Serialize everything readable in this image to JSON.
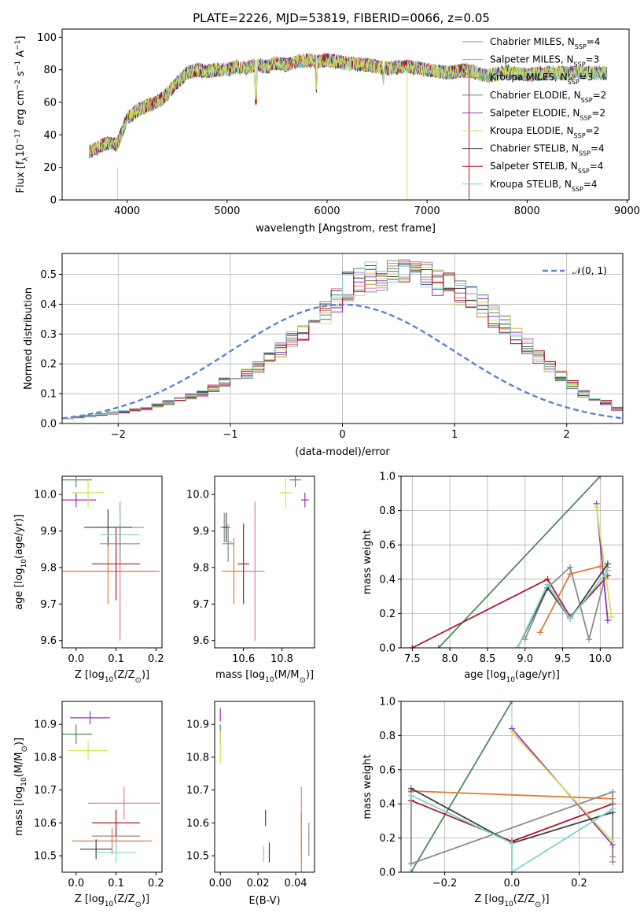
{
  "figure": {
    "title": "PLATE=2226, MJD=53819, FIBERID=0066, z=0.05"
  },
  "models": [
    {
      "label": "Chabrier MILES, N",
      "sub": "SSP",
      "tail": "=4",
      "color": "#8c8c8c"
    },
    {
      "label": "Salpeter MILES, N",
      "sub": "SSP",
      "tail": "=3",
      "color": "#e377c2"
    },
    {
      "label": "Kroupa MILES, N",
      "sub": "SSP",
      "tail": "=3",
      "color": "#e07b39"
    },
    {
      "label": "Chabrier ELODIE, N",
      "sub": "SSP",
      "tail": "=2",
      "color": "#4c8c5a"
    },
    {
      "label": "Salpeter ELODIE, N",
      "sub": "SSP",
      "tail": "=2",
      "color": "#9b30b8"
    },
    {
      "label": "Kroupa ELODIE, N",
      "sub": "SSP",
      "tail": "=2",
      "color": "#d4e157"
    },
    {
      "label": "Chabrier STELIB, N",
      "sub": "SSP",
      "tail": "=4",
      "color": "#404040"
    },
    {
      "label": "Salpeter STELIB, N",
      "sub": "SSP",
      "tail": "=4",
      "color": "#b2182b"
    },
    {
      "label": "Kroupa STELIB, N",
      "sub": "SSP",
      "tail": "=4",
      "color": "#7fd3d3"
    }
  ],
  "chart_data": [
    {
      "id": "spectrum",
      "type": "line",
      "xlabel": "wavelength [Angstrom, rest frame]",
      "ylabel_parts": {
        "a": "Flux [f",
        "sub1": "λ",
        "b": "10",
        "sup1": "−17",
        "c": " erg cm",
        "sup2": "−2",
        "d": " s",
        "sup3": "−1",
        "e": " A",
        "sup4": "−1",
        "f": "]"
      },
      "xlim": [
        3350,
        9020
      ],
      "ylim": [
        0,
        105
      ],
      "xticks": [
        "4000",
        "5000",
        "6000",
        "7000",
        "8000",
        "9000"
      ],
      "xtick_values": [
        4000,
        5000,
        6000,
        7000,
        8000,
        9000
      ],
      "yticks": [
        "0",
        "20",
        "40",
        "60",
        "80",
        "100"
      ],
      "ytick_values": [
        0,
        20,
        40,
        60,
        80,
        100
      ],
      "grid": false,
      "legend": "right",
      "envelope_wavelength": [
        3620,
        3700,
        3800,
        3900,
        4000,
        4100,
        4200,
        4300,
        4400,
        4500,
        4600,
        4700,
        4800,
        4900,
        5000,
        5100,
        5200,
        5300,
        5400,
        5500,
        5600,
        5700,
        5800,
        5900,
        6000,
        6200,
        6400,
        6600,
        6800,
        7000,
        7200,
        7400,
        7600,
        7800,
        8000,
        8200,
        8400,
        8600,
        8800
      ],
      "envelope_flux": [
        30,
        32,
        35,
        34,
        50,
        55,
        58,
        60,
        65,
        72,
        78,
        80,
        79,
        80,
        80,
        82,
        81,
        83,
        82,
        84,
        83,
        85,
        86,
        85,
        86,
        84,
        83,
        81,
        82,
        80,
        78,
        80,
        76,
        79,
        77,
        78,
        78,
        78,
        78
      ]
    },
    {
      "id": "residuals",
      "type": "bar",
      "xlabel": "(data-model)/error",
      "ylabel": "Normed distribution",
      "xlim": [
        -2.5,
        2.5
      ],
      "ylim": [
        0,
        0.57
      ],
      "xticks": [
        "−2",
        "−1",
        "0",
        "1",
        "2"
      ],
      "xtick_values": [
        -2,
        -1,
        0,
        1,
        2
      ],
      "yticks": [
        "0.0",
        "0.1",
        "0.2",
        "0.3",
        "0.4",
        "0.5"
      ],
      "ytick_values": [
        0,
        0.1,
        0.2,
        0.3,
        0.4,
        0.5
      ],
      "grid": true,
      "legend": "top-right",
      "reference_label": "𝒩(0, 1)",
      "reference_color": "#5b84d6",
      "bin_width": 0.1,
      "bin_start": -2.5,
      "mean_histogram": [
        0.018,
        0.02,
        0.025,
        0.03,
        0.035,
        0.04,
        0.045,
        0.05,
        0.06,
        0.07,
        0.08,
        0.09,
        0.1,
        0.12,
        0.14,
        0.15,
        0.17,
        0.19,
        0.22,
        0.25,
        0.28,
        0.31,
        0.34,
        0.37,
        0.42,
        0.46,
        0.47,
        0.49,
        0.5,
        0.51,
        0.5,
        0.49,
        0.49,
        0.48,
        0.46,
        0.44,
        0.42,
        0.39,
        0.36,
        0.33,
        0.29,
        0.26,
        0.22,
        0.19,
        0.16,
        0.13,
        0.1,
        0.08,
        0.07,
        0.05,
        0.04,
        0.035,
        0.03,
        0.025,
        0.02,
        0.018,
        0.015,
        0.013,
        0.012,
        0.01
      ]
    },
    {
      "id": "age-vs-z",
      "type": "scatter",
      "xlabel": "Z [log10(Z/Z⊙)]",
      "xlabel_parts": {
        "a": "Z [log",
        "sub": "10",
        "b": "(Z/Z",
        "sun": "⊙",
        "c": ")]"
      },
      "ylabel_parts": {
        "a": "age  [log",
        "sub": "10",
        "b": "(age/yr)]"
      },
      "xlim": [
        -0.035,
        0.215
      ],
      "ylim": [
        9.58,
        10.05
      ],
      "xticks": [
        "0.0",
        "0.1",
        "0.2"
      ],
      "xtick_values": [
        0,
        0.1,
        0.2
      ],
      "yticks": [
        "9.6",
        "9.7",
        "9.8",
        "9.9",
        "10.0"
      ],
      "ytick_values": [
        9.6,
        9.7,
        9.8,
        9.9,
        10.0
      ],
      "grid": false,
      "points": [
        {
          "model": 0,
          "x": 0.11,
          "y": 9.91,
          "xerr": 0.06,
          "yerr": 0.04
        },
        {
          "model": 1,
          "x": 0.11,
          "y": 9.79,
          "xerr": 0.1,
          "yerr": 0.19
        },
        {
          "model": 2,
          "x": 0.08,
          "y": 9.79,
          "xerr": 0.12,
          "yerr": 0.09
        },
        {
          "model": 3,
          "x": 0.0,
          "y": 10.04,
          "xerr": 0.04,
          "yerr": 0.02
        },
        {
          "model": 4,
          "x": 0.0,
          "y": 9.985,
          "xerr": 0.05,
          "yerr": 0.02
        },
        {
          "model": 5,
          "x": 0.03,
          "y": 10.005,
          "xerr": 0.04,
          "yerr": 0.04
        },
        {
          "model": 6,
          "x": 0.08,
          "y": 9.91,
          "xerr": 0.06,
          "yerr": 0.05
        },
        {
          "model": 7,
          "x": 0.1,
          "y": 9.81,
          "xerr": 0.06,
          "yerr": 0.1
        },
        {
          "model": 8,
          "x": 0.11,
          "y": 9.89,
          "xerr": 0.05,
          "yerr": 0.06
        },
        {
          "model": 0,
          "x": 0.11,
          "y": 9.865,
          "xerr": 0.05,
          "yerr": 0.05
        }
      ]
    },
    {
      "id": "age-vs-mass",
      "type": "scatter",
      "xlabel_parts": {
        "a": "mass [log",
        "sub": "10",
        "b": "(M/M",
        "sun": "⊙",
        "c": ")]"
      },
      "xlim": [
        10.45,
        10.97
      ],
      "ylim": [
        9.58,
        10.05
      ],
      "xticks": [
        "10.6",
        "10.8"
      ],
      "xtick_values": [
        10.6,
        10.8
      ],
      "yticks": [
        "9.6",
        "9.7",
        "9.8",
        "9.9",
        "10.0"
      ],
      "ytick_values": [
        9.6,
        9.7,
        9.8,
        9.9,
        10.0
      ],
      "grid": false,
      "points": [
        {
          "model": 0,
          "x": 10.5,
          "y": 9.91,
          "xerr": 0.02,
          "yerr": 0.04
        },
        {
          "model": 1,
          "x": 10.66,
          "y": 9.79,
          "xerr": 0.05,
          "yerr": 0.19
        },
        {
          "model": 2,
          "x": 10.55,
          "y": 9.79,
          "xerr": 0.06,
          "yerr": 0.09
        },
        {
          "model": 3,
          "x": 10.87,
          "y": 10.04,
          "xerr": 0.03,
          "yerr": 0.02
        },
        {
          "model": 4,
          "x": 10.92,
          "y": 9.985,
          "xerr": 0.02,
          "yerr": 0.02
        },
        {
          "model": 5,
          "x": 10.82,
          "y": 10.005,
          "xerr": 0.03,
          "yerr": 0.04
        },
        {
          "model": 6,
          "x": 10.51,
          "y": 9.91,
          "xerr": 0.02,
          "yerr": 0.04
        },
        {
          "model": 7,
          "x": 10.6,
          "y": 9.81,
          "xerr": 0.03,
          "yerr": 0.11
        },
        {
          "model": 8,
          "x": 10.52,
          "y": 9.87,
          "xerr": 0.02,
          "yerr": 0.05
        },
        {
          "model": 0,
          "x": 10.52,
          "y": 9.865,
          "xerr": 0.03,
          "yerr": 0.05
        }
      ]
    },
    {
      "id": "weight-vs-age",
      "type": "line",
      "xlabel_parts": {
        "a": "age  [log",
        "sub": "10",
        "b": "(age/yr)]"
      },
      "ylabel": "mass weight",
      "xlim": [
        7.35,
        10.3
      ],
      "ylim": [
        0,
        1
      ],
      "xticks": [
        "7.5",
        "8.0",
        "8.5",
        "9.0",
        "9.5",
        "10.0"
      ],
      "xtick_values": [
        7.5,
        8.0,
        8.5,
        9.0,
        9.5,
        10.0
      ],
      "yticks": [
        "0.0",
        "0.2",
        "0.4",
        "0.6",
        "0.8",
        "1.0"
      ],
      "ytick_values": [
        0,
        0.2,
        0.4,
        0.6,
        0.8,
        1.0
      ],
      "grid": true,
      "series": [
        {
          "model": 3,
          "x": [
            7.85,
            10.0
          ],
          "y": [
            0.0,
            1.0
          ]
        },
        {
          "model": 7,
          "x": [
            7.5,
            9.3,
            9.6,
            10.1
          ],
          "y": [
            0.0,
            0.4,
            0.18,
            0.42
          ]
        },
        {
          "model": 2,
          "x": [
            9.2,
            9.6,
            10.0
          ],
          "y": [
            0.09,
            0.43,
            0.475
          ]
        },
        {
          "model": 0,
          "x": [
            9.0,
            9.3,
            9.6,
            9.85,
            10.1
          ],
          "y": [
            0.05,
            0.35,
            0.47,
            0.05,
            0.47
          ]
        },
        {
          "model": 4,
          "x": [
            9.95,
            10.1
          ],
          "y": [
            0.84,
            0.16
          ]
        },
        {
          "model": 5,
          "x": [
            9.95,
            10.15
          ],
          "y": [
            0.82,
            0.18
          ]
        },
        {
          "model": 6,
          "x": [
            8.9,
            9.3,
            9.6,
            10.1
          ],
          "y": [
            0.0,
            0.35,
            0.17,
            0.49
          ]
        },
        {
          "model": 8,
          "x": [
            8.9,
            9.3,
            9.6,
            10.1
          ],
          "y": [
            0.0,
            0.37,
            0.17,
            0.45
          ]
        }
      ]
    },
    {
      "id": "mass-vs-z",
      "type": "scatter",
      "xlabel_parts": {
        "a": "Z [log",
        "sub": "10",
        "b": "(Z/Z",
        "sun": "⊙",
        "c": ")]"
      },
      "ylabel_parts": {
        "a": "mass [log",
        "sub": "10",
        "b": "(M/M",
        "sun": "⊙",
        "c": ")]"
      },
      "xlim": [
        -0.035,
        0.215
      ],
      "ylim": [
        10.45,
        10.97
      ],
      "xticks": [
        "0.0",
        "0.1",
        "0.2"
      ],
      "xtick_values": [
        0,
        0.1,
        0.2
      ],
      "yticks": [
        "10.5",
        "10.6",
        "10.7",
        "10.8",
        "10.9"
      ],
      "ytick_values": [
        10.5,
        10.6,
        10.7,
        10.8,
        10.9
      ],
      "grid": false,
      "points": [
        {
          "model": 0,
          "x": 0.1,
          "y": 10.56,
          "xerr": 0.06,
          "yerr": 0.04
        },
        {
          "model": 1,
          "x": 0.12,
          "y": 10.66,
          "xerr": 0.09,
          "yerr": 0.05
        },
        {
          "model": 2,
          "x": 0.09,
          "y": 10.545,
          "xerr": 0.1,
          "yerr": 0.04
        },
        {
          "model": 3,
          "x": 0.0,
          "y": 10.87,
          "xerr": 0.04,
          "yerr": 0.03
        },
        {
          "model": 4,
          "x": 0.035,
          "y": 10.92,
          "xerr": 0.05,
          "yerr": 0.02
        },
        {
          "model": 5,
          "x": 0.03,
          "y": 10.82,
          "xerr": 0.05,
          "yerr": 0.03
        },
        {
          "model": 6,
          "x": 0.05,
          "y": 10.52,
          "xerr": 0.04,
          "yerr": 0.03
        },
        {
          "model": 7,
          "x": 0.1,
          "y": 10.6,
          "xerr": 0.06,
          "yerr": 0.04
        },
        {
          "model": 8,
          "x": 0.1,
          "y": 10.51,
          "xerr": 0.05,
          "yerr": 0.03
        }
      ]
    },
    {
      "id": "mass-vs-ebv",
      "type": "scatter",
      "xlabel": "E(B-V)",
      "xlim": [
        -0.003,
        0.05
      ],
      "ylim": [
        10.45,
        10.97
      ],
      "xticks": [
        "0.00",
        "0.02",
        "0.04"
      ],
      "xtick_values": [
        0,
        0.02,
        0.04
      ],
      "yticks": [
        "10.5",
        "10.6",
        "10.7",
        "10.8",
        "10.9"
      ],
      "ytick_values": [
        10.5,
        10.6,
        10.7,
        10.8,
        10.9
      ],
      "grid": false,
      "points": [
        {
          "model": 0,
          "x": 0.047,
          "y": 10.55,
          "xerr": 0,
          "yerr": 0.05
        },
        {
          "model": 1,
          "x": 0.043,
          "y": 10.6,
          "xerr": 0,
          "yerr": 0.11
        },
        {
          "model": 2,
          "x": 0.043,
          "y": 10.54,
          "xerr": 0,
          "yerr": 0.09
        },
        {
          "model": 3,
          "x": 0.0,
          "y": 10.87,
          "xerr": 0,
          "yerr": 0.03
        },
        {
          "model": 4,
          "x": 0.0,
          "y": 10.93,
          "xerr": 0,
          "yerr": 0.02
        },
        {
          "model": 5,
          "x": 0.0,
          "y": 10.83,
          "xerr": 0,
          "yerr": 0.05
        },
        {
          "model": 6,
          "x": 0.026,
          "y": 10.51,
          "xerr": 0,
          "yerr": 0.03
        },
        {
          "model": 7,
          "x": 0.024,
          "y": 10.615,
          "xerr": 0,
          "yerr": 0.025
        },
        {
          "model": 8,
          "x": 0.023,
          "y": 10.505,
          "xerr": 0,
          "yerr": 0.025
        }
      ]
    },
    {
      "id": "weight-vs-z",
      "type": "line",
      "xlabel_parts": {
        "a": "Z [log",
        "sub": "10",
        "b": "(Z/Z",
        "sun": "⊙",
        "c": ")]"
      },
      "ylabel": "mass weight",
      "xlim": [
        -0.33,
        0.33
      ],
      "ylim": [
        0,
        1
      ],
      "xticks": [
        "−0.2",
        "0.0",
        "0.2"
      ],
      "xtick_values": [
        -0.2,
        0.0,
        0.2
      ],
      "yticks": [
        "0.0",
        "0.2",
        "0.4",
        "0.6",
        "0.8",
        "1.0"
      ],
      "ytick_values": [
        0,
        0.2,
        0.4,
        0.6,
        0.8,
        1.0
      ],
      "grid": true,
      "series": [
        {
          "model": 3,
          "x": [
            -0.3,
            0.0
          ],
          "y": [
            0.0,
            1.0
          ]
        },
        {
          "model": 7,
          "x": [
            -0.3,
            0.0,
            0.3
          ],
          "y": [
            0.42,
            0.18,
            0.4
          ]
        },
        {
          "model": 2,
          "x": [
            -0.3,
            0.3,
            0.3
          ],
          "y": [
            0.475,
            0.43,
            0.09
          ]
        },
        {
          "model": 0,
          "x": [
            -0.3,
            -0.3,
            0.3,
            0.3
          ],
          "y": [
            0.47,
            0.05,
            0.47,
            0.06
          ]
        },
        {
          "model": 4,
          "x": [
            0.0,
            0.3
          ],
          "y": [
            0.84,
            0.16
          ]
        },
        {
          "model": 5,
          "x": [
            0.0,
            0.3
          ],
          "y": [
            0.82,
            0.18
          ]
        },
        {
          "model": 6,
          "x": [
            -0.3,
            0.0,
            0.3
          ],
          "y": [
            0.49,
            0.17,
            0.35
          ]
        },
        {
          "model": 8,
          "x": [
            -0.3,
            0.0,
            0.0,
            0.3
          ],
          "y": [
            0.45,
            0.17,
            0.0,
            0.37
          ]
        }
      ]
    }
  ]
}
